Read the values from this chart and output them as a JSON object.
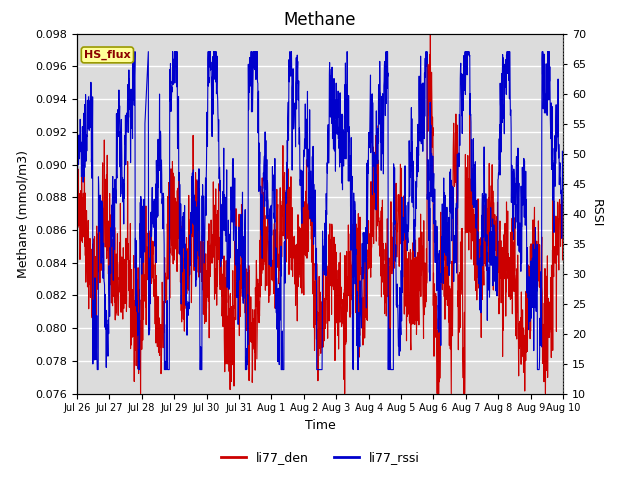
{
  "title": "Methane",
  "xlabel": "Time",
  "ylabel_left": "Methane (mmol/m3)",
  "ylabel_right": "RSSI",
  "ylim_left": [
    0.076,
    0.098
  ],
  "ylim_right": [
    10,
    70
  ],
  "yticks_left": [
    0.076,
    0.078,
    0.08,
    0.082,
    0.084,
    0.086,
    0.088,
    0.09,
    0.092,
    0.094,
    0.096,
    0.098
  ],
  "yticks_right": [
    10,
    15,
    20,
    25,
    30,
    35,
    40,
    45,
    50,
    55,
    60,
    65,
    70
  ],
  "xtick_labels": [
    "Jul 26",
    "Jul 27",
    "Jul 28",
    "Jul 29",
    "Jul 30",
    "Jul 31",
    "Aug 1",
    "Aug 2",
    "Aug 3",
    "Aug 4",
    "Aug 5",
    "Aug 6",
    "Aug 7",
    "Aug 8",
    "Aug 9",
    "Aug 10"
  ],
  "color_red": "#cc0000",
  "color_blue": "#0000cc",
  "bg_color": "#dcdcdc",
  "annotation_text": "HS_flux",
  "annotation_bg": "#ffff99",
  "annotation_edge": "#999900",
  "legend_labels": [
    "li77_den",
    "li77_rssi"
  ],
  "grid_color": "#ffffff",
  "title_fontsize": 12,
  "tick_fontsize": 8,
  "label_fontsize": 9
}
